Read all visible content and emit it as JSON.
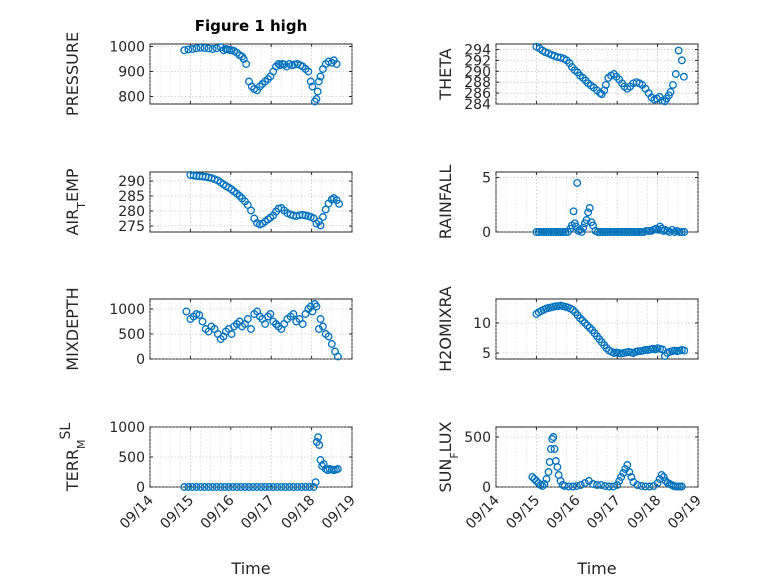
{
  "figure": {
    "title": "Figure 1 high",
    "background": "#ffffff",
    "marker_color": "#0072bd"
  },
  "chart_data": [
    {
      "type": "scatter",
      "marker": "circle",
      "title": "Figure 1 high",
      "ylabel": "PRESSURE",
      "ylabel_parts": [
        [
          "PRESSURE",
          ""
        ]
      ],
      "xlim": [
        0,
        5
      ],
      "ylim": [
        770,
        1010
      ],
      "yticks": [
        800,
        900,
        1000
      ],
      "yticklabels": [
        "800",
        "900",
        "1000"
      ],
      "xticks": [
        0,
        1,
        2,
        3,
        4,
        5
      ],
      "xticklabels": [
        "09/14",
        "09/15",
        "09/16",
        "09/17",
        "09/18",
        "09/19"
      ],
      "show_xticklabels": false,
      "xlabel": "",
      "grid": true,
      "x": [
        0.85,
        0.95,
        1.05,
        1.15,
        1.25,
        1.35,
        1.45,
        1.55,
        1.65,
        1.75,
        1.82,
        1.88,
        1.92,
        1.97,
        2.02,
        2.08,
        2.15,
        2.22,
        2.28,
        2.32,
        2.38,
        2.45,
        2.52,
        2.58,
        2.65,
        2.72,
        2.78,
        2.85,
        2.92,
        2.98,
        3.05,
        3.12,
        3.18,
        3.22,
        3.28,
        3.32,
        3.38,
        3.45,
        3.52,
        3.58,
        3.65,
        3.72,
        3.78,
        3.85,
        3.92,
        3.98,
        4.02,
        4.08,
        4.12,
        4.15,
        4.18,
        4.22,
        4.28,
        4.35,
        4.42,
        4.5,
        4.55,
        4.62
      ],
      "y": [
        985,
        988,
        990,
        993,
        995,
        994,
        992,
        990,
        993,
        997,
        985,
        990,
        988,
        986,
        985,
        982,
        975,
        965,
        960,
        950,
        930,
        860,
        840,
        830,
        825,
        840,
        850,
        860,
        870,
        880,
        900,
        920,
        930,
        925,
        930,
        928,
        920,
        930,
        925,
        928,
        930,
        925,
        920,
        910,
        900,
        860,
        840,
        780,
        790,
        820,
        860,
        880,
        910,
        930,
        940,
        935,
        945,
        930
      ]
    },
    {
      "type": "scatter",
      "marker": "circle",
      "ylabel": "THETA",
      "ylabel_parts": [
        [
          "THETA",
          ""
        ]
      ],
      "xlim": [
        0,
        5
      ],
      "ylim": [
        284,
        295
      ],
      "yticks": [
        284,
        286,
        288,
        290,
        292,
        294
      ],
      "yticklabels": [
        "284",
        "286",
        "288",
        "290",
        "292",
        "294"
      ],
      "xticks": [
        0,
        1,
        2,
        3,
        4,
        5
      ],
      "xticklabels": [
        "09/14",
        "09/15",
        "09/16",
        "09/17",
        "09/18",
        "09/19"
      ],
      "show_xticklabels": false,
      "xlabel": "",
      "grid": true,
      "x": [
        1.0,
        1.08,
        1.15,
        1.22,
        1.3,
        1.38,
        1.45,
        1.52,
        1.6,
        1.68,
        1.75,
        1.82,
        1.88,
        1.95,
        2.02,
        2.08,
        2.15,
        2.22,
        2.28,
        2.35,
        2.42,
        2.5,
        2.58,
        2.62,
        2.68,
        2.72,
        2.78,
        2.85,
        2.92,
        2.98,
        3.05,
        3.12,
        3.18,
        3.25,
        3.32,
        3.4,
        3.48,
        3.55,
        3.62,
        3.7,
        3.78,
        3.85,
        3.92,
        3.98,
        4.05,
        4.12,
        4.18,
        4.22,
        4.28,
        4.32,
        4.38,
        4.45,
        4.52,
        4.6,
        4.65
      ],
      "y": [
        294.5,
        294.2,
        293.8,
        293.5,
        293.3,
        293.0,
        292.8,
        292.6,
        292.5,
        292.3,
        292.0,
        291.5,
        290.8,
        290.2,
        289.8,
        289.2,
        288.8,
        288.3,
        287.8,
        287.4,
        287.0,
        286.5,
        286.0,
        285.8,
        286.5,
        287.5,
        288.8,
        289.2,
        289.5,
        289.0,
        288.5,
        287.8,
        287.2,
        286.8,
        287.2,
        287.8,
        288.0,
        287.8,
        287.5,
        286.8,
        286.0,
        285.2,
        284.8,
        285.0,
        285.3,
        284.6,
        284.5,
        285.0,
        285.6,
        286.2,
        287.5,
        289.5,
        293.8,
        292.0,
        289.0
      ]
    },
    {
      "type": "scatter",
      "marker": "circle",
      "ylabel": "AIR_TEMP",
      "ylabel_parts": [
        [
          "AIR",
          ""
        ],
        [
          "T",
          "sub"
        ],
        [
          "EMP",
          ""
        ]
      ],
      "xlim": [
        0,
        5
      ],
      "ylim": [
        273,
        293
      ],
      "yticks": [
        275,
        280,
        285,
        290
      ],
      "yticklabels": [
        "275",
        "280",
        "285",
        "290"
      ],
      "xticks": [
        0,
        1,
        2,
        3,
        4,
        5
      ],
      "xticklabels": [
        "09/14",
        "09/15",
        "09/16",
        "09/17",
        "09/18",
        "09/19"
      ],
      "show_xticklabels": false,
      "xlabel": "",
      "grid": true,
      "x": [
        1.0,
        1.08,
        1.15,
        1.22,
        1.3,
        1.38,
        1.45,
        1.52,
        1.6,
        1.68,
        1.75,
        1.82,
        1.88,
        1.95,
        2.02,
        2.08,
        2.15,
        2.22,
        2.28,
        2.35,
        2.42,
        2.5,
        2.58,
        2.65,
        2.72,
        2.78,
        2.85,
        2.92,
        2.98,
        3.05,
        3.12,
        3.18,
        3.25,
        3.32,
        3.4,
        3.48,
        3.55,
        3.62,
        3.7,
        3.78,
        3.85,
        3.92,
        3.98,
        4.05,
        4.12,
        4.18,
        4.22,
        4.28,
        4.35,
        4.42,
        4.5,
        4.55,
        4.62,
        4.68
      ],
      "y": [
        292.0,
        291.8,
        291.7,
        291.6,
        291.5,
        291.4,
        291.2,
        291.0,
        290.6,
        290.2,
        289.5,
        288.9,
        288.3,
        287.8,
        287.2,
        286.5,
        285.8,
        285.0,
        284.2,
        283.2,
        282.0,
        280.2,
        277.5,
        276.0,
        275.5,
        275.8,
        276.5,
        277.2,
        277.8,
        278.5,
        279.8,
        280.8,
        281.0,
        280.2,
        279.3,
        278.8,
        278.5,
        278.3,
        278.6,
        278.7,
        278.5,
        278.3,
        278.0,
        277.6,
        275.8,
        276.5,
        275.2,
        278.0,
        280.5,
        282.5,
        283.8,
        284.3,
        283.6,
        282.4
      ]
    },
    {
      "type": "scatter",
      "marker": "circle",
      "ylabel": "RAINFALL",
      "ylabel_parts": [
        [
          "RAINFALL",
          ""
        ]
      ],
      "xlim": [
        0,
        5
      ],
      "ylim": [
        0,
        5.5
      ],
      "yticks": [
        0,
        5
      ],
      "yticklabels": [
        "0",
        "5"
      ],
      "xticks": [
        0,
        1,
        2,
        3,
        4,
        5
      ],
      "xticklabels": [
        "09/14",
        "09/15",
        "09/16",
        "09/17",
        "09/18",
        "09/19"
      ],
      "show_xticklabels": false,
      "xlabel": "",
      "grid": true,
      "x": [
        1.0,
        1.06,
        1.12,
        1.18,
        1.24,
        1.3,
        1.36,
        1.42,
        1.48,
        1.54,
        1.6,
        1.66,
        1.72,
        1.78,
        1.84,
        1.88,
        1.92,
        1.95,
        1.98,
        2.01,
        2.04,
        2.08,
        2.12,
        2.16,
        2.2,
        2.24,
        2.28,
        2.32,
        2.36,
        2.4,
        2.46,
        2.52,
        2.58,
        2.64,
        2.7,
        2.76,
        2.82,
        2.88,
        2.94,
        3.0,
        3.06,
        3.12,
        3.18,
        3.24,
        3.3,
        3.36,
        3.42,
        3.48,
        3.54,
        3.6,
        3.66,
        3.72,
        3.78,
        3.84,
        3.9,
        3.96,
        4.02,
        4.06,
        4.1,
        4.14,
        4.18,
        4.24,
        4.3,
        4.36,
        4.42,
        4.48,
        4.54,
        4.6,
        4.66
      ],
      "y": [
        0,
        0,
        0,
        0,
        0,
        0,
        0,
        0,
        0,
        0,
        0,
        0,
        0,
        0,
        0.3,
        0.6,
        1.9,
        0.8,
        0.5,
        4.5,
        0.1,
        0.2,
        0,
        0.4,
        0.8,
        1.1,
        1.8,
        2.2,
        0.9,
        0.6,
        0.1,
        0,
        0,
        0,
        0,
        0,
        0,
        0,
        0,
        0,
        0,
        0,
        0,
        0,
        0,
        0,
        0,
        0,
        0,
        0,
        0,
        0.1,
        0.1,
        0.1,
        0.2,
        0.3,
        0.2,
        0.5,
        0.3,
        0.1,
        0.2,
        0.1,
        0,
        0.2,
        0,
        0.1,
        0,
        0,
        0
      ]
    },
    {
      "type": "scatter",
      "marker": "circle",
      "ylabel": "MIXDEPTH",
      "ylabel_parts": [
        [
          "MIXDEPTH",
          ""
        ]
      ],
      "xlim": [
        0,
        5
      ],
      "ylim": [
        0,
        1200
      ],
      "yticks": [
        0,
        500,
        1000
      ],
      "yticklabels": [
        "0",
        "500",
        "1000"
      ],
      "xticks": [
        0,
        1,
        2,
        3,
        4,
        5
      ],
      "xticklabels": [
        "09/14",
        "09/15",
        "09/16",
        "09/17",
        "09/18",
        "09/19"
      ],
      "show_xticklabels": false,
      "xlabel": "",
      "grid": true,
      "x": [
        0.9,
        1.0,
        1.08,
        1.15,
        1.22,
        1.3,
        1.38,
        1.45,
        1.52,
        1.6,
        1.68,
        1.75,
        1.82,
        1.88,
        1.95,
        2.02,
        2.08,
        2.15,
        2.22,
        2.28,
        2.35,
        2.42,
        2.5,
        2.58,
        2.65,
        2.72,
        2.78,
        2.85,
        2.92,
        2.98,
        3.05,
        3.12,
        3.18,
        3.25,
        3.32,
        3.4,
        3.48,
        3.55,
        3.62,
        3.7,
        3.78,
        3.85,
        3.92,
        3.98,
        4.02,
        4.08,
        4.12,
        4.18,
        4.22,
        4.28,
        4.35,
        4.42,
        4.5,
        4.58,
        4.65
      ],
      "y": [
        950,
        800,
        850,
        900,
        880,
        750,
        600,
        550,
        650,
        600,
        500,
        400,
        450,
        550,
        600,
        500,
        650,
        700,
        750,
        650,
        700,
        800,
        600,
        900,
        950,
        850,
        800,
        700,
        850,
        900,
        750,
        700,
        650,
        600,
        700,
        800,
        850,
        900,
        750,
        800,
        700,
        900,
        1000,
        1050,
        950,
        1100,
        1050,
        600,
        800,
        650,
        500,
        450,
        300,
        150,
        50
      ]
    },
    {
      "type": "scatter",
      "marker": "circle",
      "ylabel": "H2OMIXRA",
      "ylabel_parts": [
        [
          "H2OMIXRA",
          ""
        ]
      ],
      "xlim": [
        0,
        5
      ],
      "ylim": [
        4,
        14
      ],
      "yticks": [
        5,
        10
      ],
      "yticklabels": [
        "5",
        "10"
      ],
      "xticks": [
        0,
        1,
        2,
        3,
        4,
        5
      ],
      "xticklabels": [
        "09/14",
        "09/15",
        "09/16",
        "09/17",
        "09/18",
        "09/19"
      ],
      "show_xticklabels": false,
      "xlabel": "",
      "grid": true,
      "x": [
        1.0,
        1.06,
        1.12,
        1.18,
        1.24,
        1.3,
        1.36,
        1.42,
        1.48,
        1.54,
        1.6,
        1.66,
        1.72,
        1.78,
        1.84,
        1.9,
        1.96,
        2.02,
        2.08,
        2.14,
        2.2,
        2.26,
        2.32,
        2.38,
        2.44,
        2.5,
        2.56,
        2.62,
        2.68,
        2.74,
        2.8,
        2.86,
        2.92,
        2.98,
        3.04,
        3.1,
        3.16,
        3.22,
        3.28,
        3.34,
        3.4,
        3.46,
        3.52,
        3.58,
        3.64,
        3.7,
        3.76,
        3.82,
        3.88,
        3.94,
        4.0,
        4.06,
        4.12,
        4.18,
        4.24,
        4.3,
        4.36,
        4.42,
        4.48,
        4.54,
        4.6,
        4.66
      ],
      "y": [
        11.5,
        11.8,
        12.0,
        12.2,
        12.4,
        12.5,
        12.6,
        12.7,
        12.8,
        12.8,
        12.9,
        12.8,
        12.7,
        12.6,
        12.4,
        12.2,
        11.8,
        11.3,
        10.8,
        10.4,
        10.0,
        9.6,
        9.2,
        8.8,
        8.3,
        7.8,
        7.3,
        6.8,
        6.3,
        5.8,
        5.4,
        5.2,
        5.0,
        5.1,
        5.0,
        4.9,
        5.0,
        5.1,
        5.2,
        5.1,
        5.0,
        5.2,
        5.3,
        5.3,
        5.4,
        5.5,
        5.5,
        5.6,
        5.7,
        5.6,
        5.8,
        5.7,
        5.6,
        4.5,
        5.0,
        5.2,
        5.3,
        5.4,
        5.3,
        5.4,
        5.5,
        5.4
      ]
    },
    {
      "type": "scatter",
      "marker": "circle",
      "ylabel": "TERR_MSL",
      "ylabel_parts": [
        [
          "TERR",
          ""
        ],
        [
          "M",
          "sub"
        ],
        [
          "SL",
          "sup"
        ]
      ],
      "xlim": [
        0,
        5
      ],
      "ylim": [
        0,
        1000
      ],
      "yticks": [
        0,
        500,
        1000
      ],
      "yticklabels": [
        "0",
        "500",
        "1000"
      ],
      "xticks": [
        0,
        1,
        2,
        3,
        4,
        5
      ],
      "xticklabels": [
        "09/14",
        "09/15",
        "09/16",
        "09/17",
        "09/18",
        "09/19"
      ],
      "show_xticklabels": true,
      "xlabel": "Time",
      "grid": true,
      "x": [
        0.85,
        0.95,
        1.05,
        1.15,
        1.25,
        1.35,
        1.45,
        1.55,
        1.65,
        1.75,
        1.85,
        1.95,
        2.05,
        2.15,
        2.25,
        2.35,
        2.45,
        2.55,
        2.65,
        2.75,
        2.85,
        2.95,
        3.05,
        3.15,
        3.25,
        3.35,
        3.45,
        3.55,
        3.65,
        3.75,
        3.85,
        3.95,
        4.05,
        4.1,
        4.13,
        4.16,
        4.19,
        4.22,
        4.26,
        4.3,
        4.35,
        4.4,
        4.45,
        4.5,
        4.55,
        4.6,
        4.65
      ],
      "y": [
        0,
        0,
        0,
        0,
        0,
        0,
        0,
        0,
        0,
        0,
        0,
        0,
        0,
        0,
        0,
        0,
        0,
        0,
        0,
        0,
        0,
        0,
        0,
        0,
        0,
        0,
        0,
        0,
        0,
        0,
        0,
        0,
        0,
        80,
        750,
        830,
        700,
        450,
        350,
        380,
        300,
        280,
        300,
        290,
        280,
        290,
        300
      ]
    },
    {
      "type": "scatter",
      "marker": "circle",
      "ylabel": "SUN_FLUX",
      "ylabel_parts": [
        [
          "SUN",
          ""
        ],
        [
          "F",
          "sub"
        ],
        [
          "LUX",
          ""
        ]
      ],
      "xlim": [
        0,
        5
      ],
      "ylim": [
        0,
        600
      ],
      "yticks": [
        0,
        500
      ],
      "yticklabels": [
        "0",
        "500"
      ],
      "xticks": [
        0,
        1,
        2,
        3,
        4,
        5
      ],
      "xticklabels": [
        "09/14",
        "09/15",
        "09/16",
        "09/17",
        "09/18",
        "09/19"
      ],
      "show_xticklabels": true,
      "xlabel": "Time",
      "grid": true,
      "x": [
        0.9,
        0.95,
        1.0,
        1.05,
        1.1,
        1.15,
        1.2,
        1.25,
        1.3,
        1.33,
        1.36,
        1.39,
        1.42,
        1.45,
        1.48,
        1.52,
        1.55,
        1.6,
        1.65,
        1.7,
        1.8,
        1.9,
        2.0,
        2.1,
        2.2,
        2.3,
        2.4,
        2.5,
        2.6,
        2.7,
        2.8,
        2.9,
        3.0,
        3.05,
        3.1,
        3.15,
        3.2,
        3.25,
        3.3,
        3.35,
        3.4,
        3.5,
        3.6,
        3.7,
        3.8,
        3.9,
        4.0,
        4.05,
        4.1,
        4.15,
        4.2,
        4.25,
        4.3,
        4.35,
        4.4,
        4.45,
        4.5,
        4.55,
        4.6
      ],
      "y": [
        100,
        80,
        60,
        40,
        20,
        10,
        30,
        80,
        150,
        250,
        380,
        480,
        500,
        380,
        260,
        200,
        120,
        60,
        20,
        10,
        5,
        5,
        10,
        20,
        40,
        60,
        30,
        20,
        20,
        10,
        5,
        5,
        20,
        60,
        100,
        140,
        180,
        220,
        150,
        100,
        50,
        20,
        10,
        5,
        5,
        10,
        40,
        80,
        120,
        100,
        60,
        40,
        30,
        20,
        10,
        5,
        5,
        5,
        5
      ]
    }
  ]
}
